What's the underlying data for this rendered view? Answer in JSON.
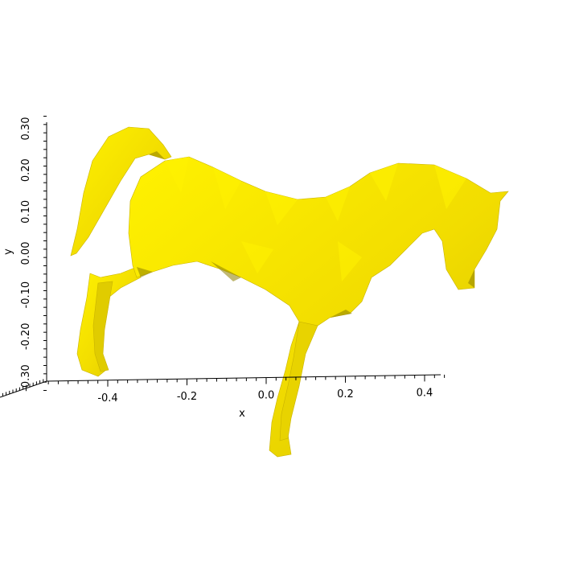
{
  "chart_data": {
    "type": "scatter",
    "subtype": "3d-surface-mesh",
    "title": "",
    "xlabel": "x",
    "ylabel": "y",
    "xlim": [
      -0.55,
      0.45
    ],
    "ylim": [
      -0.33,
      0.33
    ],
    "x_ticks": [
      -0.4,
      -0.2,
      0.0,
      0.2,
      0.4
    ],
    "x_tick_labels": [
      "-0.4",
      "-0.2",
      "0.0",
      "0.2",
      "0.4"
    ],
    "y_ticks": [
      -0.3,
      -0.2,
      -0.1,
      0.0,
      0.1,
      0.2,
      0.3
    ],
    "y_tick_labels": [
      "-0.30",
      "-0.20",
      "-0.10",
      "0.00",
      "0.10",
      "0.20",
      "0.30"
    ],
    "grid": false,
    "surface_color": "#f2dd00",
    "surface_highlight": "#fff200",
    "surface_shadow": "#8c7d00"
  }
}
